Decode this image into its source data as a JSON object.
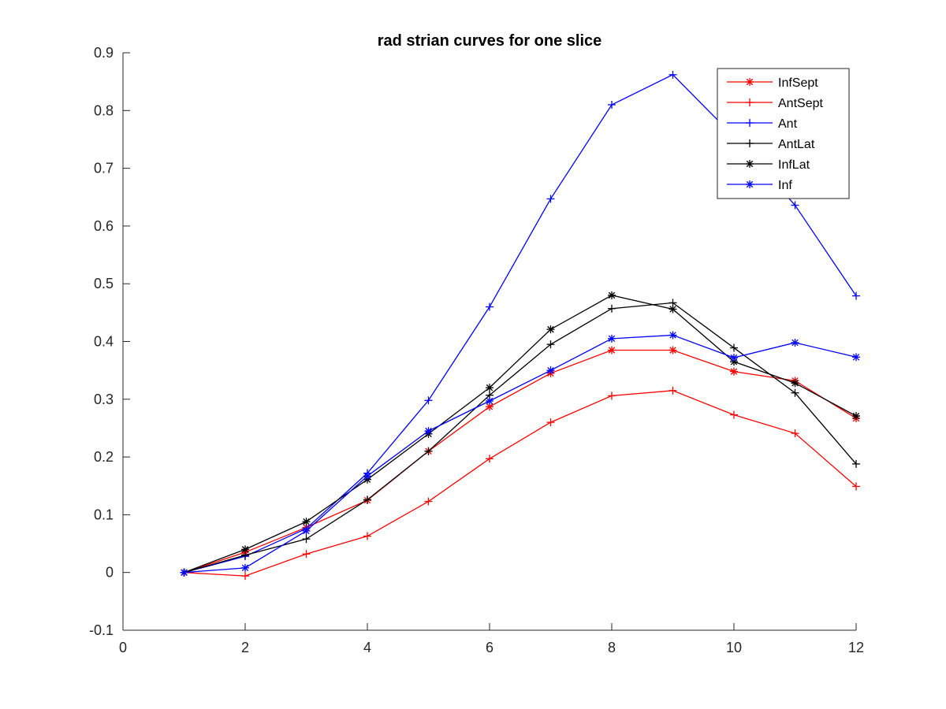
{
  "chart_data": {
    "type": "line",
    "title": "rad strian curves for one slice",
    "xlabel": "",
    "ylabel": "",
    "xlim": [
      0,
      12
    ],
    "ylim": [
      -0.1,
      0.9
    ],
    "xticks": [
      "0",
      "2",
      "4",
      "6",
      "8",
      "10",
      "12"
    ],
    "yticks": [
      "-0.1",
      "0",
      "0.1",
      "0.2",
      "0.3",
      "0.4",
      "0.5",
      "0.6",
      "0.7",
      "0.8",
      "0.9"
    ],
    "grid": false,
    "legend_position": "top-right",
    "x": [
      1,
      2,
      3,
      4,
      5,
      6,
      7,
      8,
      9,
      10,
      11,
      12
    ],
    "series": [
      {
        "name": "InfSept",
        "color": "#ff0000",
        "marker": "asterisk",
        "values": [
          0.0,
          0.035,
          0.078,
          0.125,
          0.21,
          0.287,
          0.345,
          0.385,
          0.385,
          0.348,
          0.332,
          0.267
        ]
      },
      {
        "name": "AntSept",
        "color": "#ff0000",
        "marker": "plus",
        "values": [
          0.0,
          -0.006,
          0.032,
          0.063,
          0.123,
          0.197,
          0.26,
          0.306,
          0.315,
          0.273,
          0.241,
          0.149
        ]
      },
      {
        "name": "Ant",
        "color": "#0000ff",
        "marker": "plus",
        "values": [
          0.0,
          0.028,
          0.076,
          0.172,
          0.298,
          0.46,
          0.647,
          0.81,
          0.862,
          0.755,
          0.636,
          0.479
        ]
      },
      {
        "name": "AntLat",
        "color": "#000000",
        "marker": "plus",
        "values": [
          0.0,
          0.03,
          0.058,
          0.126,
          0.21,
          0.307,
          0.395,
          0.457,
          0.467,
          0.389,
          0.311,
          0.188
        ]
      },
      {
        "name": "InfLat",
        "color": "#000000",
        "marker": "asterisk",
        "values": [
          0.0,
          0.04,
          0.088,
          0.161,
          0.24,
          0.32,
          0.421,
          0.48,
          0.456,
          0.365,
          0.328,
          0.271
        ]
      },
      {
        "name": "Inf",
        "color": "#0000ff",
        "marker": "asterisk",
        "values": [
          0.0,
          0.008,
          0.072,
          0.167,
          0.245,
          0.297,
          0.35,
          0.405,
          0.411,
          0.372,
          0.398,
          0.373
        ]
      }
    ]
  }
}
